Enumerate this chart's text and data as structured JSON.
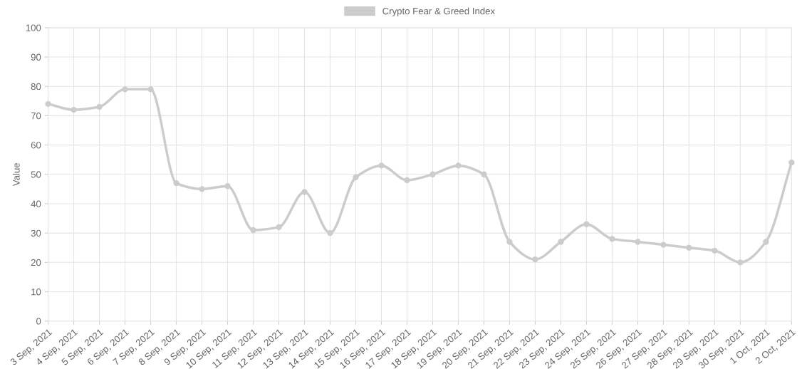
{
  "chart_data": {
    "type": "line",
    "ylabel": "Value",
    "categories": [
      "3 Sep, 2021",
      "4 Sep, 2021",
      "5 Sep, 2021",
      "6 Sep, 2021",
      "7 Sep, 2021",
      "8 Sep, 2021",
      "9 Sep, 2021",
      "10 Sep, 2021",
      "11 Sep, 2021",
      "12 Sep, 2021",
      "13 Sep, 2021",
      "14 Sep, 2021",
      "15 Sep, 2021",
      "16 Sep, 2021",
      "17 Sep, 2021",
      "18 Sep, 2021",
      "19 Sep, 2021",
      "20 Sep, 2021",
      "21 Sep, 2021",
      "22 Sep, 2021",
      "23 Sep, 2021",
      "24 Sep, 2021",
      "25 Sep, 2021",
      "26 Sep, 2021",
      "27 Sep, 2021",
      "28 Sep, 2021",
      "29 Sep, 2021",
      "30 Sep, 2021",
      "1 Oct, 2021",
      "2 Oct, 2021"
    ],
    "series": [
      {
        "name": "Crypto Fear & Greed Index",
        "color": "#cccccc",
        "values": [
          74,
          72,
          73,
          79,
          79,
          47,
          45,
          46,
          31,
          32,
          44,
          30,
          49,
          53,
          48,
          50,
          53,
          50,
          27,
          21,
          27,
          33,
          28,
          27,
          26,
          25,
          24,
          20,
          27,
          54
        ]
      }
    ],
    "ylim": [
      0,
      100
    ],
    "yticks": [
      0,
      10,
      20,
      30,
      40,
      50,
      60,
      70,
      80,
      90,
      100
    ],
    "grid": true,
    "legend": "top",
    "marker": "circle",
    "line_style": "solid"
  }
}
